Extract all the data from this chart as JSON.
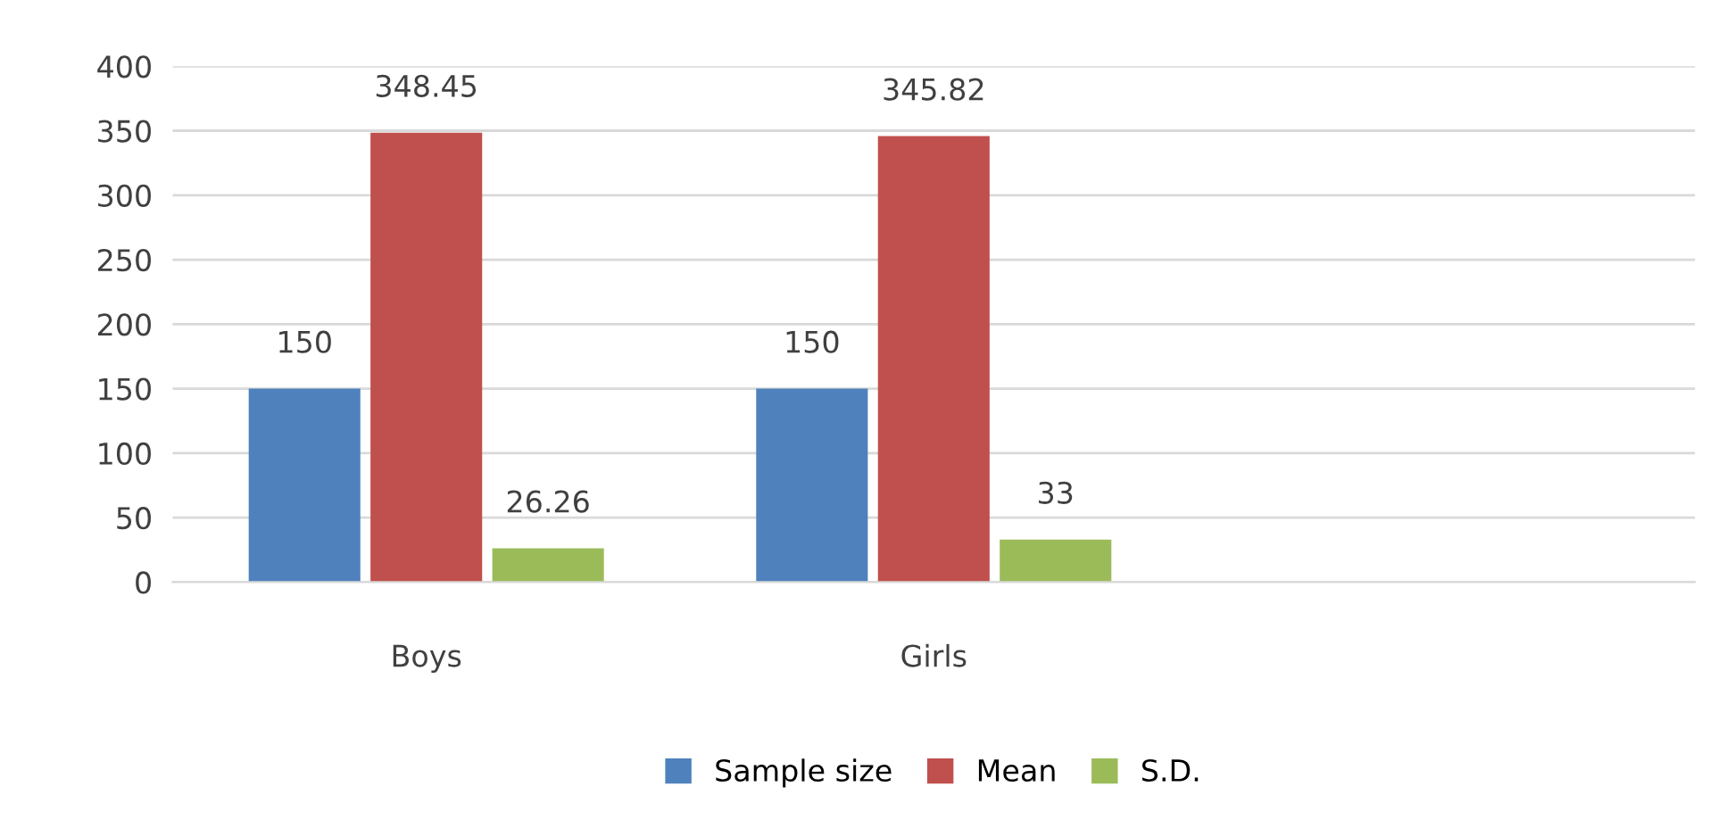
{
  "chart_data": {
    "type": "bar",
    "categories": [
      "Boys",
      "Girls",
      null
    ],
    "series": [
      {
        "name": "Sample size",
        "color": "#4f81bd",
        "values": [
          150,
          150,
          null
        ]
      },
      {
        "name": "Mean",
        "color": "#c0504d",
        "values": [
          348.45,
          345.82,
          null
        ]
      },
      {
        "name": "S.D.",
        "color": "#9bbb59",
        "values": [
          26.26,
          33,
          null
        ]
      }
    ],
    "ylim": [
      0,
      400
    ],
    "yticks": [
      0,
      50,
      100,
      150,
      200,
      250,
      300,
      350,
      400
    ],
    "grid": "y",
    "legend": "bottom",
    "data_labels": true
  }
}
